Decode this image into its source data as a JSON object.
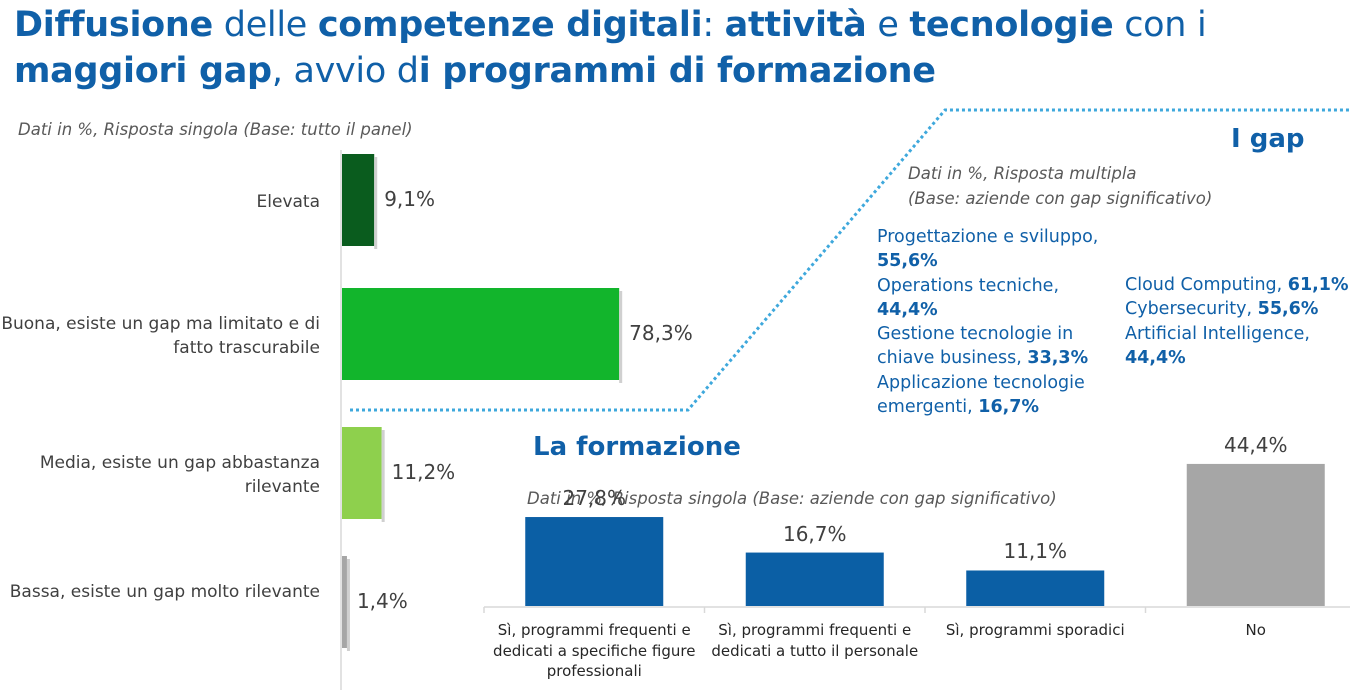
{
  "title": {
    "parts": [
      {
        "text": "Diffusione",
        "bold": true
      },
      {
        "text": " delle ",
        "bold": false
      },
      {
        "text": "competenze digitali",
        "bold": true
      },
      {
        "text": ": ",
        "bold": false
      },
      {
        "text": "attività",
        "bold": true
      },
      {
        "text": " e ",
        "bold": false
      },
      {
        "text": "tecnologie",
        "bold": true
      },
      {
        "text": " con i ",
        "bold": false
      },
      {
        "text": "maggiori gap",
        "bold": true
      },
      {
        "text": ", avvio d",
        "bold": false
      },
      {
        "text": "i programmi di formazione",
        "bold": true
      }
    ]
  },
  "colors": {
    "title_blue": "#1060a8",
    "dark_green": "#0a5c1e",
    "green": "#12b52c",
    "light_green": "#8ed04d",
    "gray_bar": "#a6a6a6",
    "blue_bar": "#0b5fa5",
    "dotted_line": "#3ea8dc"
  },
  "left_note": "Dati in %, Risposta singola  (Base: tutto il panel)",
  "gap": {
    "heading": "I gap",
    "note_line1": "Dati in %, Risposta multipla",
    "note_line2": "(Base: aziende con gap significativo)",
    "activities": [
      {
        "label": "Progettazione e sviluppo, ",
        "value": "55,6%"
      },
      {
        "label": "Operations tecniche, ",
        "value": "44,4%"
      },
      {
        "label": "Gestione tecnologie in chiave business, ",
        "value": "33,3%"
      },
      {
        "label": "Applicazione tecnologie emergenti, ",
        "value": "16,7%"
      }
    ],
    "technologies": [
      {
        "label": "Cloud Computing, ",
        "value": "61,1%"
      },
      {
        "label": "Cybersecurity, ",
        "value": "55,6%"
      },
      {
        "label": "Artificial Intelligence, ",
        "value": "44,4%"
      }
    ]
  },
  "formazione": {
    "heading": "La formazione",
    "note": "Dati in %, Risposta singola  (Base: aziende con gap significativo)"
  },
  "chart_data": [
    {
      "type": "bar",
      "orientation": "horizontal",
      "categories": [
        "Elevata",
        "Buona, esiste un gap ma limitato e di fatto trascurabile",
        "Media, esiste un gap abbastanza rilevante",
        "Bassa, esiste un gap molto rilevante"
      ],
      "values": [
        9.1,
        78.3,
        11.2,
        1.4
      ],
      "value_labels": [
        "9,1%",
        "78,3%",
        "11,2%",
        "1,4%"
      ],
      "bar_colors": [
        "#0a5c1e",
        "#12b52c",
        "#8ed04d",
        "#a6a6a6"
      ],
      "xlim": [
        0,
        100
      ],
      "grid": false
    },
    {
      "type": "bar",
      "orientation": "vertical",
      "categories": [
        "Sì, programmi frequenti e dedicati a specifiche figure professionali",
        "Sì, programmi frequenti e dedicati a tutto il personale",
        "Sì, programmi sporadici",
        "No"
      ],
      "category_lines": [
        [
          "Sì, programmi frequenti e",
          "dedicati a specifiche figure",
          "professionali"
        ],
        [
          "Sì, programmi frequenti e",
          "dedicati a tutto il personale"
        ],
        [
          "Sì, programmi sporadici"
        ],
        [
          "No"
        ]
      ],
      "values": [
        27.8,
        16.7,
        11.1,
        44.4
      ],
      "value_labels": [
        "27,8%",
        "16,7%",
        "11,1%",
        "44,4%"
      ],
      "bar_colors": [
        "#0b5fa5",
        "#0b5fa5",
        "#0b5fa5",
        "#a6a6a6"
      ],
      "ylim": [
        0,
        50
      ],
      "grid": false
    }
  ]
}
